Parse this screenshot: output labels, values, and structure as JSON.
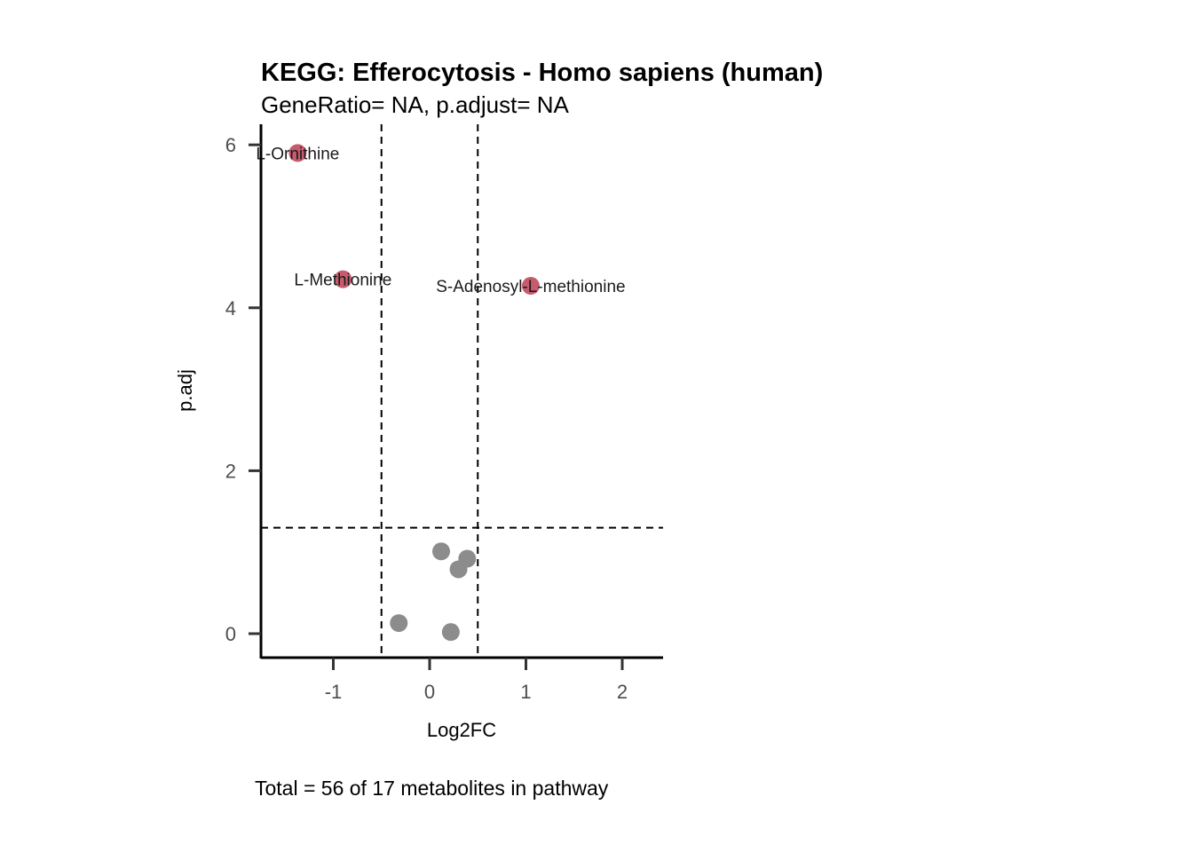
{
  "chart_data": {
    "type": "scatter",
    "title": "KEGG: Efferocytosis - Homo sapiens (human)",
    "subtitle": "GeneRatio= NA, p.adjust= NA",
    "xlabel": "Log2FC",
    "ylabel": "p.adj",
    "caption": "Total = 56 of 17 metabolites in pathway",
    "xlim": [
      -1.8,
      2.4
    ],
    "ylim": [
      -0.3,
      6.3
    ],
    "xticks": [
      -1,
      0,
      1,
      2
    ],
    "xtick_labels": [
      "-1",
      "0",
      "1",
      "2"
    ],
    "yticks": [
      0,
      2,
      4,
      6
    ],
    "ytick_labels": [
      "0",
      "2",
      "4",
      "6"
    ],
    "grid": false,
    "thresholds": {
      "vertical": [
        -0.5,
        0.5
      ],
      "horizontal": [
        1.3
      ]
    },
    "colors": {
      "significant": "#c75b6e",
      "not_significant": "#8c8c8c",
      "axis": "#000000",
      "tick": "#333333",
      "threshold": "#000000"
    },
    "points": [
      {
        "x": -1.37,
        "y": 5.9,
        "label": "L-Ornithine",
        "significant": true
      },
      {
        "x": -0.9,
        "y": 4.35,
        "label": "L-Methionine",
        "significant": true
      },
      {
        "x": 1.05,
        "y": 4.27,
        "label": "S-Adenosyl-L-methionine",
        "significant": true
      },
      {
        "x": 0.12,
        "y": 1.01,
        "label": "",
        "significant": false
      },
      {
        "x": 0.39,
        "y": 0.92,
        "label": "",
        "significant": false
      },
      {
        "x": 0.3,
        "y": 0.79,
        "label": "",
        "significant": false
      },
      {
        "x": -0.32,
        "y": 0.13,
        "label": "",
        "significant": false
      },
      {
        "x": 0.22,
        "y": 0.02,
        "label": "",
        "significant": false
      }
    ]
  }
}
